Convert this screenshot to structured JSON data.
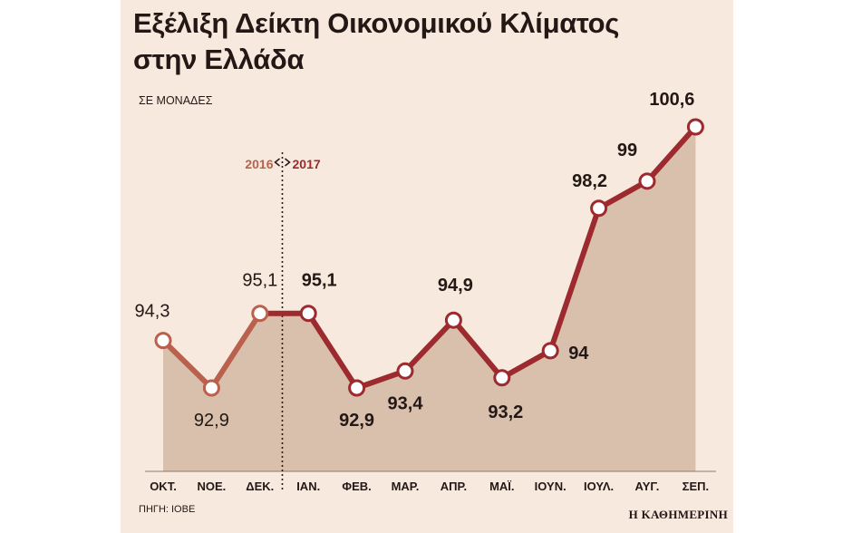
{
  "title_line1": "Εξέλιξη Δείκτη Οικονομικού Κλίματος",
  "title_line2": "στην Ελλάδα",
  "units": "ΣΕ ΜΟΝΑΔΕΣ",
  "source": "ΠΗΓΗ: ΙΟΒΕ",
  "brand": "Η ΚΑΘΗΜΕΡΙΝΗ",
  "year_left": "2016",
  "year_right": "2017",
  "colors": {
    "background": "#f7e9dd",
    "area": "#d8c0ad",
    "line_2016": "#b9614c",
    "line_2017": "#9c2a2e",
    "year_2016": "#b9614c",
    "year_2017": "#9c2a2e",
    "text": "#231815"
  },
  "chart_data": {
    "type": "line",
    "categories": [
      "ΟΚΤ.",
      "ΝΟΕ.",
      "ΔΕΚ.",
      "ΙΑΝ.",
      "ΦΕΒ.",
      "ΜΑΡ.",
      "ΑΠΡ.",
      "ΜΑΪ.",
      "ΙΟΥΝ.",
      "ΙΟΥΛ.",
      "ΑΥΓ.",
      "ΣΕΠ."
    ],
    "values": [
      94.3,
      92.9,
      95.1,
      95.1,
      92.9,
      93.4,
      94.9,
      93.2,
      94,
      98.2,
      99,
      100.6
    ],
    "labels": [
      "94,3",
      "92,9",
      "95,1",
      "95,1",
      "92,9",
      "93,4",
      "94,9",
      "93,2",
      "94",
      "98,2",
      "99",
      "100,6"
    ],
    "years": [
      "2016",
      "2016",
      "2016",
      "2017",
      "2017",
      "2017",
      "2017",
      "2017",
      "2017",
      "2017",
      "2017",
      "2017"
    ],
    "title": "Εξέλιξη Δείκτη Οικονομικού Κλίματος στην Ελλάδα",
    "ylabel": "ΣΕ ΜΟΝΑΔΕΣ",
    "grid": false,
    "area_fill": true
  }
}
